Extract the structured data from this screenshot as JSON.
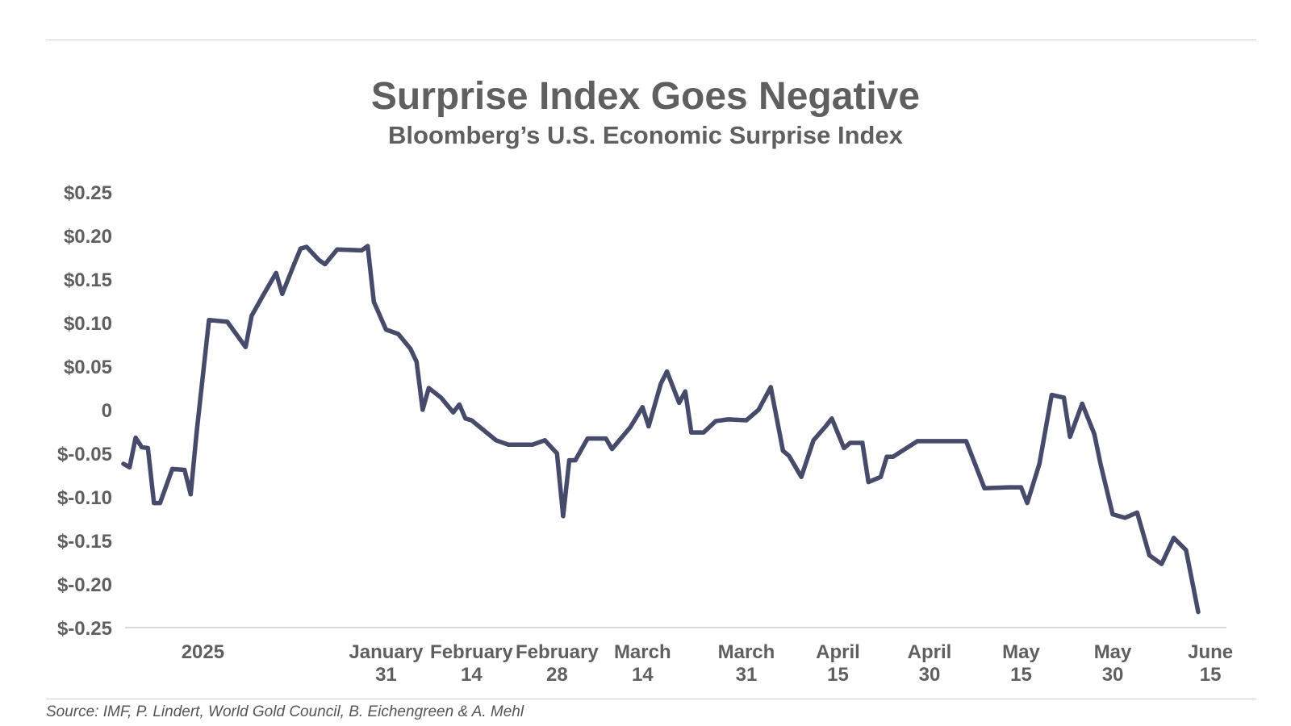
{
  "title": "Surprise Index Goes Negative",
  "subtitle": "Bloomberg’s U.S. Economic Surprise Index",
  "source": "Source: IMF, P. Lindert, World Gold Council, B. Eichengreen & A. Mehl",
  "colors": {
    "line": "#464a6b",
    "text": "#5f5f5f",
    "axis": "#d9d9d9"
  },
  "chart_data": {
    "type": "line",
    "title": "Surprise Index Goes Negative",
    "subtitle": "Bloomberg’s U.S. Economic Surprise Index",
    "xlabel": "",
    "ylabel": "",
    "ylim": [
      -0.25,
      0.25
    ],
    "grid": false,
    "y_ticks": [
      0.25,
      0.2,
      0.15,
      0.1,
      0.05,
      0,
      -0.05,
      -0.1,
      -0.15,
      -0.2,
      -0.25
    ],
    "y_tick_labels": [
      "$0.25",
      "$0.20",
      "$0.15",
      "$0.10",
      "$0.05",
      "0",
      "$-0.05",
      "$-0.10",
      "$-0.15",
      "$-0.20",
      "$-0.25"
    ],
    "x_tick_labels": [
      {
        "date": "2025-01-01",
        "lines": [
          "2025"
        ]
      },
      {
        "date": "2025-01-31",
        "lines": [
          "January",
          "31"
        ]
      },
      {
        "date": "2025-02-14",
        "lines": [
          "February",
          "14"
        ]
      },
      {
        "date": "2025-02-28",
        "lines": [
          "February",
          "28"
        ]
      },
      {
        "date": "2025-03-14",
        "lines": [
          "March",
          "14"
        ]
      },
      {
        "date": "2025-03-31",
        "lines": [
          "March",
          "31"
        ]
      },
      {
        "date": "2025-04-15",
        "lines": [
          "April",
          "15"
        ]
      },
      {
        "date": "2025-04-30",
        "lines": [
          "April",
          "30"
        ]
      },
      {
        "date": "2025-05-15",
        "lines": [
          "May",
          "15"
        ]
      },
      {
        "date": "2025-05-30",
        "lines": [
          "May",
          "30"
        ]
      },
      {
        "date": "2025-06-15",
        "lines": [
          "June",
          "15"
        ]
      }
    ],
    "series": [
      {
        "points": [
          [
            "2024-12-19",
            -0.062
          ],
          [
            "2024-12-20",
            -0.066
          ],
          [
            "2024-12-21",
            -0.032
          ],
          [
            "2024-12-22",
            -0.043
          ],
          [
            "2024-12-23",
            -0.044
          ],
          [
            "2024-12-24",
            -0.107
          ],
          [
            "2024-12-25",
            -0.107
          ],
          [
            "2024-12-27",
            -0.068
          ],
          [
            "2024-12-29",
            -0.069
          ],
          [
            "2024-12-30",
            -0.097
          ],
          [
            "2024-12-31",
            -0.025
          ],
          [
            "2025-01-02",
            0.103
          ],
          [
            "2025-01-05",
            0.101
          ],
          [
            "2025-01-08",
            0.072
          ],
          [
            "2025-01-09",
            0.108
          ],
          [
            "2025-01-11",
            0.133
          ],
          [
            "2025-01-13",
            0.157
          ],
          [
            "2025-01-14",
            0.133
          ],
          [
            "2025-01-16",
            0.168
          ],
          [
            "2025-01-17",
            0.185
          ],
          [
            "2025-01-18",
            0.187
          ],
          [
            "2025-01-20",
            0.172
          ],
          [
            "2025-01-21",
            0.167
          ],
          [
            "2025-01-23",
            0.184
          ],
          [
            "2025-01-27",
            0.183
          ],
          [
            "2025-01-28",
            0.188
          ],
          [
            "2025-01-29",
            0.124
          ],
          [
            "2025-01-31",
            0.092
          ],
          [
            "2025-02-02",
            0.087
          ],
          [
            "2025-02-04",
            0.07
          ],
          [
            "2025-02-05",
            0.055
          ],
          [
            "2025-02-06",
            0.0
          ],
          [
            "2025-02-07",
            0.025
          ],
          [
            "2025-02-09",
            0.014
          ],
          [
            "2025-02-11",
            -0.003
          ],
          [
            "2025-02-12",
            0.006
          ],
          [
            "2025-02-13",
            -0.01
          ],
          [
            "2025-02-14",
            -0.012
          ],
          [
            "2025-02-18",
            -0.035
          ],
          [
            "2025-02-20",
            -0.04
          ],
          [
            "2025-02-24",
            -0.04
          ],
          [
            "2025-02-26",
            -0.035
          ],
          [
            "2025-02-28",
            -0.05
          ],
          [
            "2025-03-01",
            -0.122
          ],
          [
            "2025-03-02",
            -0.058
          ],
          [
            "2025-03-03",
            -0.058
          ],
          [
            "2025-03-05",
            -0.033
          ],
          [
            "2025-03-08",
            -0.033
          ],
          [
            "2025-03-09",
            -0.045
          ],
          [
            "2025-03-12",
            -0.02
          ],
          [
            "2025-03-14",
            0.003
          ],
          [
            "2025-03-15",
            -0.019
          ],
          [
            "2025-03-17",
            0.03
          ],
          [
            "2025-03-18",
            0.044
          ],
          [
            "2025-03-20",
            0.008
          ],
          [
            "2025-03-21",
            0.021
          ],
          [
            "2025-03-22",
            -0.026
          ],
          [
            "2025-03-24",
            -0.026
          ],
          [
            "2025-03-26",
            -0.013
          ],
          [
            "2025-03-28",
            -0.011
          ],
          [
            "2025-03-31",
            -0.012
          ],
          [
            "2025-04-02",
            0.0
          ],
          [
            "2025-04-04",
            0.026
          ],
          [
            "2025-04-06",
            -0.047
          ],
          [
            "2025-04-07",
            -0.053
          ],
          [
            "2025-04-09",
            -0.077
          ],
          [
            "2025-04-11",
            -0.035
          ],
          [
            "2025-04-13",
            -0.019
          ],
          [
            "2025-04-14",
            -0.01
          ],
          [
            "2025-04-16",
            -0.044
          ],
          [
            "2025-04-17",
            -0.038
          ],
          [
            "2025-04-19",
            -0.038
          ],
          [
            "2025-04-20",
            -0.083
          ],
          [
            "2025-04-22",
            -0.077
          ],
          [
            "2025-04-23",
            -0.054
          ],
          [
            "2025-04-24",
            -0.054
          ],
          [
            "2025-04-28",
            -0.036
          ],
          [
            "2025-05-03",
            -0.036
          ],
          [
            "2025-05-06",
            -0.036
          ],
          [
            "2025-05-09",
            -0.09
          ],
          [
            "2025-05-13",
            -0.089
          ],
          [
            "2025-05-15",
            -0.089
          ],
          [
            "2025-05-16",
            -0.107
          ],
          [
            "2025-05-18",
            -0.062
          ],
          [
            "2025-05-20",
            0.017
          ],
          [
            "2025-05-22",
            0.014
          ],
          [
            "2025-05-23",
            -0.031
          ],
          [
            "2025-05-25",
            0.007
          ],
          [
            "2025-05-27",
            -0.028
          ],
          [
            "2025-05-28",
            -0.062
          ],
          [
            "2025-05-30",
            -0.12
          ],
          [
            "2025-06-01",
            -0.124
          ],
          [
            "2025-06-03",
            -0.118
          ],
          [
            "2025-06-05",
            -0.167
          ],
          [
            "2025-06-07",
            -0.177
          ],
          [
            "2025-06-09",
            -0.147
          ],
          [
            "2025-06-11",
            -0.161
          ],
          [
            "2025-06-13",
            -0.232
          ]
        ]
      }
    ]
  }
}
